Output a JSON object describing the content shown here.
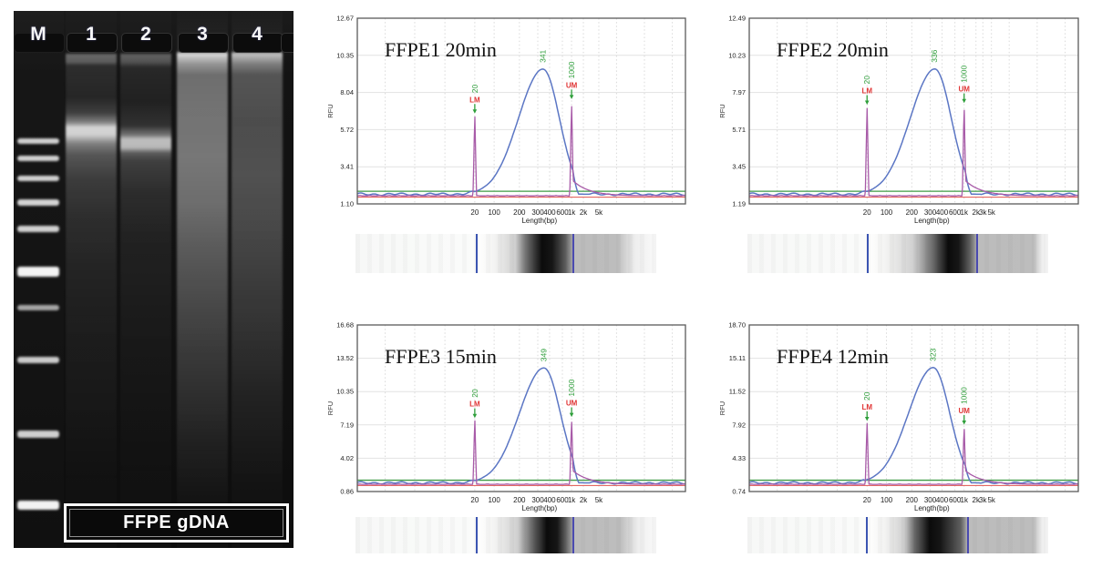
{
  "gel": {
    "caption": "FFPE gDNA",
    "lane_labels": [
      "M",
      "1",
      "2",
      "3",
      "4"
    ],
    "ladder_bands": [
      [
        140,
        6,
        0.8
      ],
      [
        159,
        6,
        0.8
      ],
      [
        181,
        6,
        0.8
      ],
      [
        207,
        7,
        0.82
      ],
      [
        236,
        7,
        0.8
      ],
      [
        281,
        11,
        0.95
      ],
      [
        323,
        6,
        0.62
      ],
      [
        380,
        7,
        0.78
      ],
      [
        461,
        8,
        0.8
      ],
      [
        538,
        10,
        0.95
      ]
    ],
    "smears": {
      "1": [
        [
          0,
          0
        ],
        [
          46,
          0
        ],
        [
          48,
          0.35
        ],
        [
          56,
          0.3
        ],
        [
          60,
          0.1
        ],
        [
          95,
          0.07
        ],
        [
          112,
          0.18
        ],
        [
          122,
          0.45
        ],
        [
          128,
          0.82
        ],
        [
          136,
          0.8
        ],
        [
          146,
          0.45
        ],
        [
          158,
          0.28
        ],
        [
          185,
          0.17
        ],
        [
          225,
          0.11
        ],
        [
          280,
          0.07
        ],
        [
          360,
          0.04
        ],
        [
          450,
          0.02
        ],
        [
          520,
          0
        ]
      ],
      "2": [
        [
          0,
          0
        ],
        [
          46,
          0
        ],
        [
          48,
          0.32
        ],
        [
          56,
          0.26
        ],
        [
          62,
          0.08
        ],
        [
          100,
          0.05
        ],
        [
          126,
          0.12
        ],
        [
          136,
          0.4
        ],
        [
          141,
          0.72
        ],
        [
          150,
          0.7
        ],
        [
          156,
          0.3
        ],
        [
          165,
          0.18
        ],
        [
          200,
          0.1
        ],
        [
          250,
          0.06
        ],
        [
          330,
          0.03
        ],
        [
          430,
          0.01
        ],
        [
          520,
          0
        ]
      ],
      "3": [
        [
          0,
          0
        ],
        [
          44,
          0.05
        ],
        [
          47,
          0.85
        ],
        [
          58,
          0.55
        ],
        [
          70,
          0.38
        ],
        [
          110,
          0.4
        ],
        [
          160,
          0.42
        ],
        [
          210,
          0.38
        ],
        [
          260,
          0.3
        ],
        [
          310,
          0.24
        ],
        [
          370,
          0.17
        ],
        [
          430,
          0.11
        ],
        [
          480,
          0.06
        ],
        [
          530,
          0.02
        ],
        [
          560,
          0
        ]
      ],
      "4": [
        [
          0,
          0
        ],
        [
          44,
          0.05
        ],
        [
          47,
          0.75
        ],
        [
          58,
          0.45
        ],
        [
          70,
          0.27
        ],
        [
          120,
          0.24
        ],
        [
          180,
          0.26
        ],
        [
          240,
          0.22
        ],
        [
          300,
          0.17
        ],
        [
          360,
          0.12
        ],
        [
          420,
          0.07
        ],
        [
          470,
          0.04
        ],
        [
          520,
          0.01
        ],
        [
          560,
          0
        ]
      ]
    }
  },
  "chart_data": [
    {
      "type": "line",
      "title": "FFPE1 20min",
      "xlabel": "Length(bp)",
      "ylabel": "RFU",
      "x_scale": "log-time",
      "x_tick_labels": [
        "20",
        "100",
        "200",
        "300",
        "400",
        "600",
        "1k",
        "2k",
        "5k"
      ],
      "x_tick_bp": [
        20,
        100,
        200,
        300,
        400,
        600,
        1000,
        2000,
        5000
      ],
      "y_ticks": [
        "12.67",
        "10.35",
        "8.04",
        "5.72",
        "3.41",
        "1.10"
      ],
      "ylim": [
        1.1,
        12.67
      ],
      "peak": {
        "bp": 341,
        "label": "341",
        "rfu": 9.5
      },
      "lower_marker": {
        "name": "LM",
        "bp": 20,
        "label": "20",
        "rfu": 6.7
      },
      "upper_marker": {
        "name": "UM",
        "bp": 1000,
        "label": "1000",
        "rfu": 7.6
      },
      "colors": {
        "sample": "#5b76c4",
        "marker": "#a85ba8",
        "threshold": "#3f9b45",
        "baseline": "#e0534d",
        "annotation_green": "#2e9e3a",
        "annotation_red": "#e03535"
      },
      "gel_band": {
        "lm": 0.403,
        "um": 0.724,
        "dark_peak": 0.62,
        "gray_end": 0.87,
        "fade_end": 0.93
      }
    },
    {
      "type": "line",
      "title": "FFPE2 20min",
      "xlabel": "Length(bp)",
      "ylabel": "RFU",
      "x_scale": "log-time",
      "x_tick_labels": [
        "20",
        "100",
        "200",
        "300",
        "400",
        "600",
        "1k",
        "2k",
        "3k",
        "5k"
      ],
      "x_tick_bp": [
        20,
        100,
        200,
        300,
        400,
        600,
        1000,
        2000,
        3000,
        5000
      ],
      "y_ticks": [
        "12.49",
        "10.23",
        "7.97",
        "5.71",
        "3.45",
        "1.19"
      ],
      "ylim": [
        1.19,
        12.49
      ],
      "peak": {
        "bp": 336,
        "label": "336",
        "rfu": 9.4
      },
      "lower_marker": {
        "name": "LM",
        "bp": 20,
        "label": "20",
        "rfu": 7.2
      },
      "upper_marker": {
        "name": "UM",
        "bp": 1000,
        "label": "1000",
        "rfu": 7.3
      },
      "colors": {
        "sample": "#5b76c4",
        "marker": "#a85ba8",
        "threshold": "#3f9b45",
        "baseline": "#e0534d",
        "annotation_green": "#2e9e3a",
        "annotation_red": "#e03535"
      },
      "gel_band": {
        "lm": 0.4,
        "um": 0.764,
        "dark_peak": 0.667,
        "gray_end": 0.95,
        "fade_end": 0.98
      }
    },
    {
      "type": "line",
      "title": "FFPE3 15min",
      "xlabel": "Length(bp)",
      "ylabel": "RFU",
      "x_scale": "log-time",
      "x_tick_labels": [
        "20",
        "100",
        "200",
        "300",
        "400",
        "600",
        "1k",
        "2k",
        "5k"
      ],
      "x_tick_bp": [
        20,
        100,
        200,
        300,
        400,
        600,
        1000,
        2000,
        5000
      ],
      "y_ticks": [
        "16.68",
        "13.52",
        "10.35",
        "7.19",
        "4.02",
        "0.86"
      ],
      "ylim": [
        0.86,
        16.68
      ],
      "peak": {
        "bp": 349,
        "label": "349",
        "rfu": 12.6
      },
      "lower_marker": {
        "name": "LM",
        "bp": 20,
        "label": "20",
        "rfu": 7.8
      },
      "upper_marker": {
        "name": "UM",
        "bp": 1000,
        "label": "1000",
        "rfu": 7.9
      },
      "colors": {
        "sample": "#5b76c4",
        "marker": "#a85ba8",
        "threshold": "#3f9b45",
        "baseline": "#e0534d",
        "annotation_green": "#2e9e3a",
        "annotation_red": "#e03535"
      },
      "gel_band": {
        "lm": 0.403,
        "um": 0.724,
        "dark_peak": 0.636,
        "gray_end": 0.88,
        "fade_end": 0.94
      }
    },
    {
      "type": "line",
      "title": "FFPE4 12min",
      "xlabel": "Length(bp)",
      "ylabel": "RFU",
      "x_scale": "log-time",
      "x_tick_labels": [
        "20",
        "100",
        "200",
        "300",
        "400",
        "600",
        "1k",
        "2k",
        "3k",
        "5k"
      ],
      "x_tick_bp": [
        20,
        100,
        200,
        300,
        400,
        600,
        1000,
        2000,
        3000,
        5000
      ],
      "y_ticks": [
        "18.70",
        "15.11",
        "11.52",
        "7.92",
        "4.33",
        "0.74"
      ],
      "ylim": [
        0.74,
        18.7
      ],
      "peak": {
        "bp": 323,
        "label": "323",
        "rfu": 14.1
      },
      "lower_marker": {
        "name": "LM",
        "bp": 20,
        "label": "20",
        "rfu": 8.3
      },
      "upper_marker": {
        "name": "UM",
        "bp": 1000,
        "label": "1000",
        "rfu": 7.9
      },
      "colors": {
        "sample": "#5b76c4",
        "marker": "#a85ba8",
        "threshold": "#3f9b45",
        "baseline": "#e0534d",
        "annotation_green": "#2e9e3a",
        "annotation_red": "#e03535"
      },
      "gel_band": {
        "lm": 0.397,
        "um": 0.733,
        "dark_peak": 0.606,
        "gray_end": 0.95,
        "fade_end": 0.98
      }
    }
  ]
}
